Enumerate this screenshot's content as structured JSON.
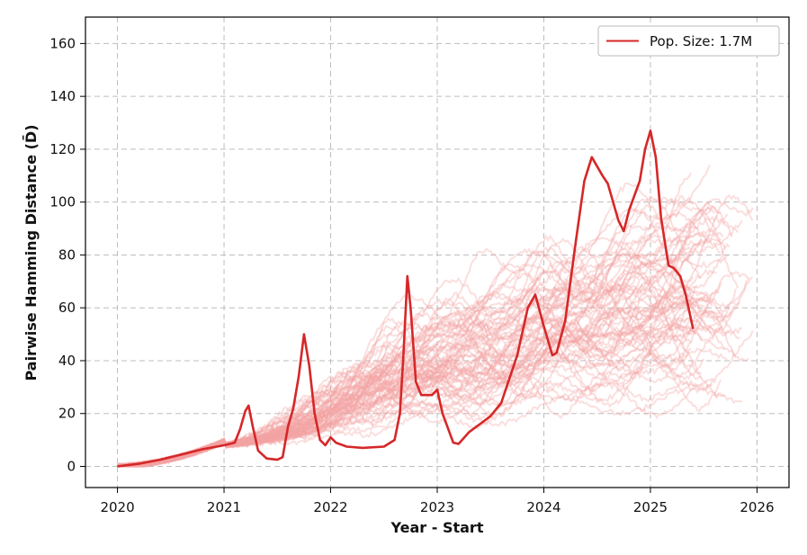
{
  "chart_data": {
    "type": "line",
    "xlabel": "Year - Start",
    "ylabel": "Pairwise Hamming Distance (D̄)",
    "xlim": [
      2019.7,
      2026.3
    ],
    "ylim": [
      -8,
      170
    ],
    "x_ticks": [
      2020,
      2021,
      2022,
      2023,
      2024,
      2025,
      2026
    ],
    "y_ticks": [
      0,
      20,
      40,
      60,
      80,
      100,
      120,
      140,
      160
    ],
    "grid": true,
    "legend": {
      "placement": "top-right",
      "label": "Pop. Size:  1.7M"
    },
    "colors": {
      "main": "#d62728",
      "background": "#f4a3a3"
    },
    "main_series": {
      "name": "Pop. Size:  1.7M",
      "points": [
        [
          2020.0,
          0
        ],
        [
          2020.2,
          1
        ],
        [
          2020.4,
          2.5
        ],
        [
          2020.6,
          4.5
        ],
        [
          2020.8,
          6.5
        ],
        [
          2021.0,
          8
        ],
        [
          2021.1,
          9
        ],
        [
          2021.15,
          14
        ],
        [
          2021.2,
          21
        ],
        [
          2021.23,
          23
        ],
        [
          2021.27,
          15
        ],
        [
          2021.32,
          6
        ],
        [
          2021.4,
          3
        ],
        [
          2021.5,
          2.5
        ],
        [
          2021.55,
          3.5
        ],
        [
          2021.6,
          15
        ],
        [
          2021.65,
          22
        ],
        [
          2021.7,
          34
        ],
        [
          2021.75,
          50
        ],
        [
          2021.8,
          38
        ],
        [
          2021.85,
          20
        ],
        [
          2021.9,
          10
        ],
        [
          2021.95,
          8
        ],
        [
          2022.0,
          11
        ],
        [
          2022.05,
          9
        ],
        [
          2022.15,
          7.5
        ],
        [
          2022.3,
          7
        ],
        [
          2022.5,
          7.5
        ],
        [
          2022.6,
          10
        ],
        [
          2022.65,
          20
        ],
        [
          2022.68,
          40
        ],
        [
          2022.72,
          72
        ],
        [
          2022.75,
          60
        ],
        [
          2022.8,
          32
        ],
        [
          2022.85,
          27
        ],
        [
          2022.95,
          27
        ],
        [
          2023.0,
          29
        ],
        [
          2023.05,
          20
        ],
        [
          2023.15,
          9
        ],
        [
          2023.2,
          8.5
        ],
        [
          2023.3,
          13
        ],
        [
          2023.4,
          16
        ],
        [
          2023.5,
          19
        ],
        [
          2023.6,
          24
        ],
        [
          2023.75,
          42
        ],
        [
          2023.85,
          60
        ],
        [
          2023.92,
          65
        ],
        [
          2024.0,
          53
        ],
        [
          2024.08,
          42
        ],
        [
          2024.12,
          43
        ],
        [
          2024.2,
          55
        ],
        [
          2024.3,
          85
        ],
        [
          2024.38,
          108
        ],
        [
          2024.45,
          117
        ],
        [
          2024.55,
          110
        ],
        [
          2024.6,
          107
        ],
        [
          2024.7,
          93
        ],
        [
          2024.75,
          89
        ],
        [
          2024.8,
          97
        ],
        [
          2024.9,
          108
        ],
        [
          2024.95,
          120
        ],
        [
          2025.0,
          127
        ],
        [
          2025.05,
          117
        ],
        [
          2025.1,
          94
        ],
        [
          2025.17,
          76
        ],
        [
          2025.22,
          75
        ],
        [
          2025.28,
          72
        ],
        [
          2025.33,
          65
        ],
        [
          2025.4,
          52
        ]
      ]
    },
    "background_series_count": 70
  }
}
